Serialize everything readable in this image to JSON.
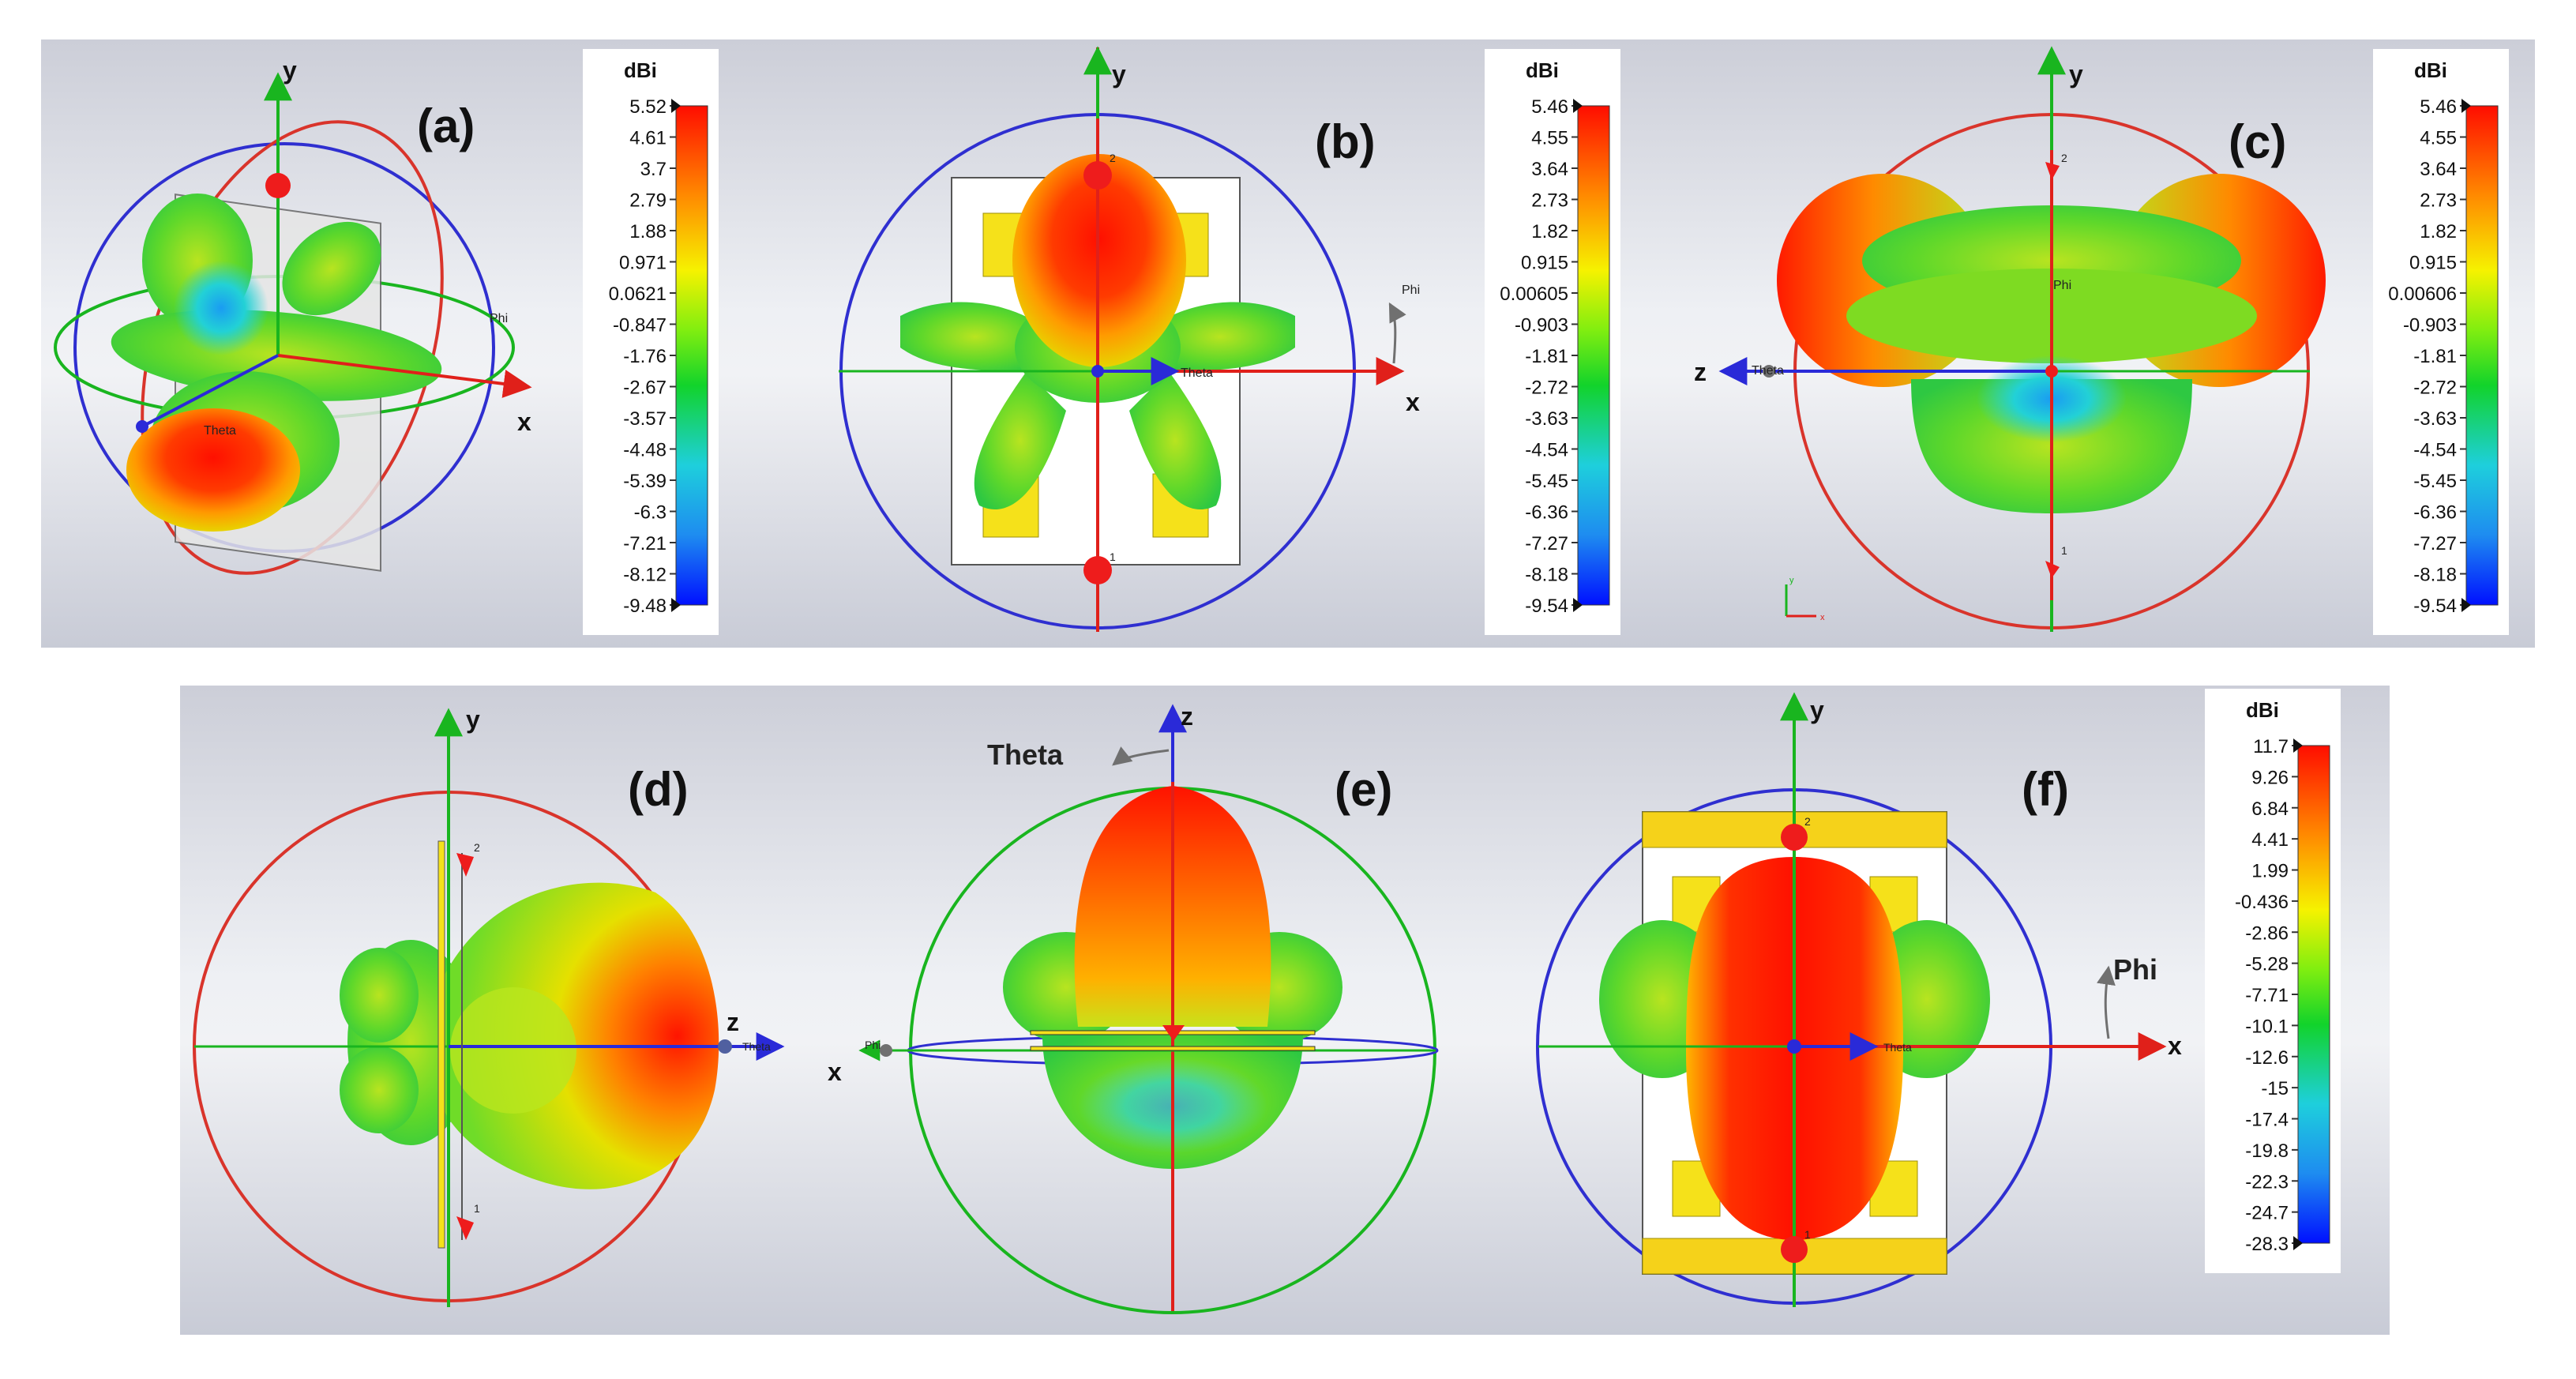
{
  "panels": [
    {
      "id": "a",
      "label": "(a)",
      "axes": {
        "y": "y",
        "x": "x"
      },
      "tags": {
        "theta": "Theta",
        "phi": "Phi"
      }
    },
    {
      "id": "b",
      "label": "(b)",
      "axes": {
        "y": "y",
        "x": "x"
      },
      "tags": {
        "theta": "Theta",
        "phi": "Phi"
      },
      "ports": [
        "2",
        "1"
      ]
    },
    {
      "id": "c",
      "label": "(c)",
      "axes": {
        "y": "y",
        "z": "z"
      },
      "tags": {
        "theta": "Theta",
        "phi": "Phi"
      },
      "ports": [
        "2",
        "1"
      ],
      "triad": {
        "y": "y",
        "x": "x"
      }
    },
    {
      "id": "d",
      "label": "(d)",
      "axes": {
        "y": "y",
        "z": "z"
      },
      "tags": {
        "theta": "Theta"
      },
      "ports": [
        "2",
        "1"
      ]
    },
    {
      "id": "e",
      "label": "(e)",
      "axes": {
        "z": "z",
        "x": "x"
      },
      "tags": {
        "theta": "Theta",
        "phi": "Phi"
      }
    },
    {
      "id": "f",
      "label": "(f)",
      "axes": {
        "y": "y",
        "x": "x"
      },
      "tags": {
        "theta": "Theta",
        "phi": "Phi"
      },
      "ports": [
        "2",
        "1"
      ]
    }
  ],
  "scales": [
    {
      "id": "a",
      "unit": "dBi",
      "ticks": [
        "5.52",
        "4.61",
        "3.7",
        "2.79",
        "1.88",
        "0.971",
        "0.0621",
        "-0.847",
        "-1.76",
        "-2.67",
        "-3.57",
        "-4.48",
        "-5.39",
        "-6.3",
        "-7.21",
        "-8.12",
        "-9.48"
      ]
    },
    {
      "id": "b",
      "unit": "dBi",
      "ticks": [
        "5.46",
        "4.55",
        "3.64",
        "2.73",
        "1.82",
        "0.915",
        "0.00605",
        "-0.903",
        "-1.81",
        "-2.72",
        "-3.63",
        "-4.54",
        "-5.45",
        "-6.36",
        "-7.27",
        "-8.18",
        "-9.54"
      ]
    },
    {
      "id": "c",
      "unit": "dBi",
      "ticks": [
        "5.46",
        "4.55",
        "3.64",
        "2.73",
        "1.82",
        "0.915",
        "0.00606",
        "-0.903",
        "-1.81",
        "-2.72",
        "-3.63",
        "-4.54",
        "-5.45",
        "-6.36",
        "-7.27",
        "-8.18",
        "-9.54"
      ]
    },
    {
      "id": "f",
      "unit": "dBi",
      "ticks": [
        "11.7",
        "9.26",
        "6.84",
        "4.41",
        "1.99",
        "-0.436",
        "-2.86",
        "-5.28",
        "-7.71",
        "-10.1",
        "-12.6",
        "-15",
        "-17.4",
        "-19.8",
        "-22.3",
        "-24.7",
        "-28.3"
      ]
    }
  ],
  "colors": {
    "hot": "#ff1a00",
    "mid": "#a6e22a",
    "green": "#22cc22",
    "cyan": "#1ecbe1",
    "blue": "#0015ff",
    "axis_green": "#19b51f",
    "axis_red": "#e0201a",
    "axis_blue": "#2a2ad8",
    "sphere_red": "#d9342b",
    "sphere_blue": "#2f2fd0"
  }
}
